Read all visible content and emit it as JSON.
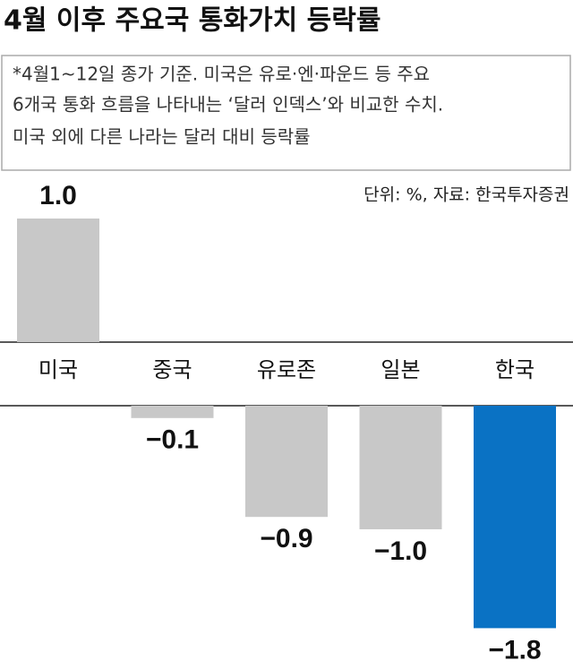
{
  "chart_data": {
    "type": "bar",
    "title": "4월 이후 주요국 통화가치 등락률",
    "notes": [
      "*4월1~12일 종가 기준. 미국은 유로·엔·파운드 등 주요",
      "6개국 통화 흐름을 나타내는 ‘달러 인덱스’와 비교한 수치.",
      "미국 외에 다른 나라는 달러 대비 등락률"
    ],
    "source": "단위: %, 자료: 한국투자증권",
    "categories": [
      "미국",
      "중국",
      "유로존",
      "일본",
      "한국"
    ],
    "values": [
      1.0,
      -0.1,
      -0.9,
      -1.0,
      -1.8
    ],
    "value_labels": [
      "1.0",
      "−0.1",
      "−0.9",
      "−1.0",
      "−1.8"
    ],
    "colors": [
      "#c8c8c8",
      "#c8c8c8",
      "#c8c8c8",
      "#c8c8c8",
      "#0a72c4"
    ]
  }
}
